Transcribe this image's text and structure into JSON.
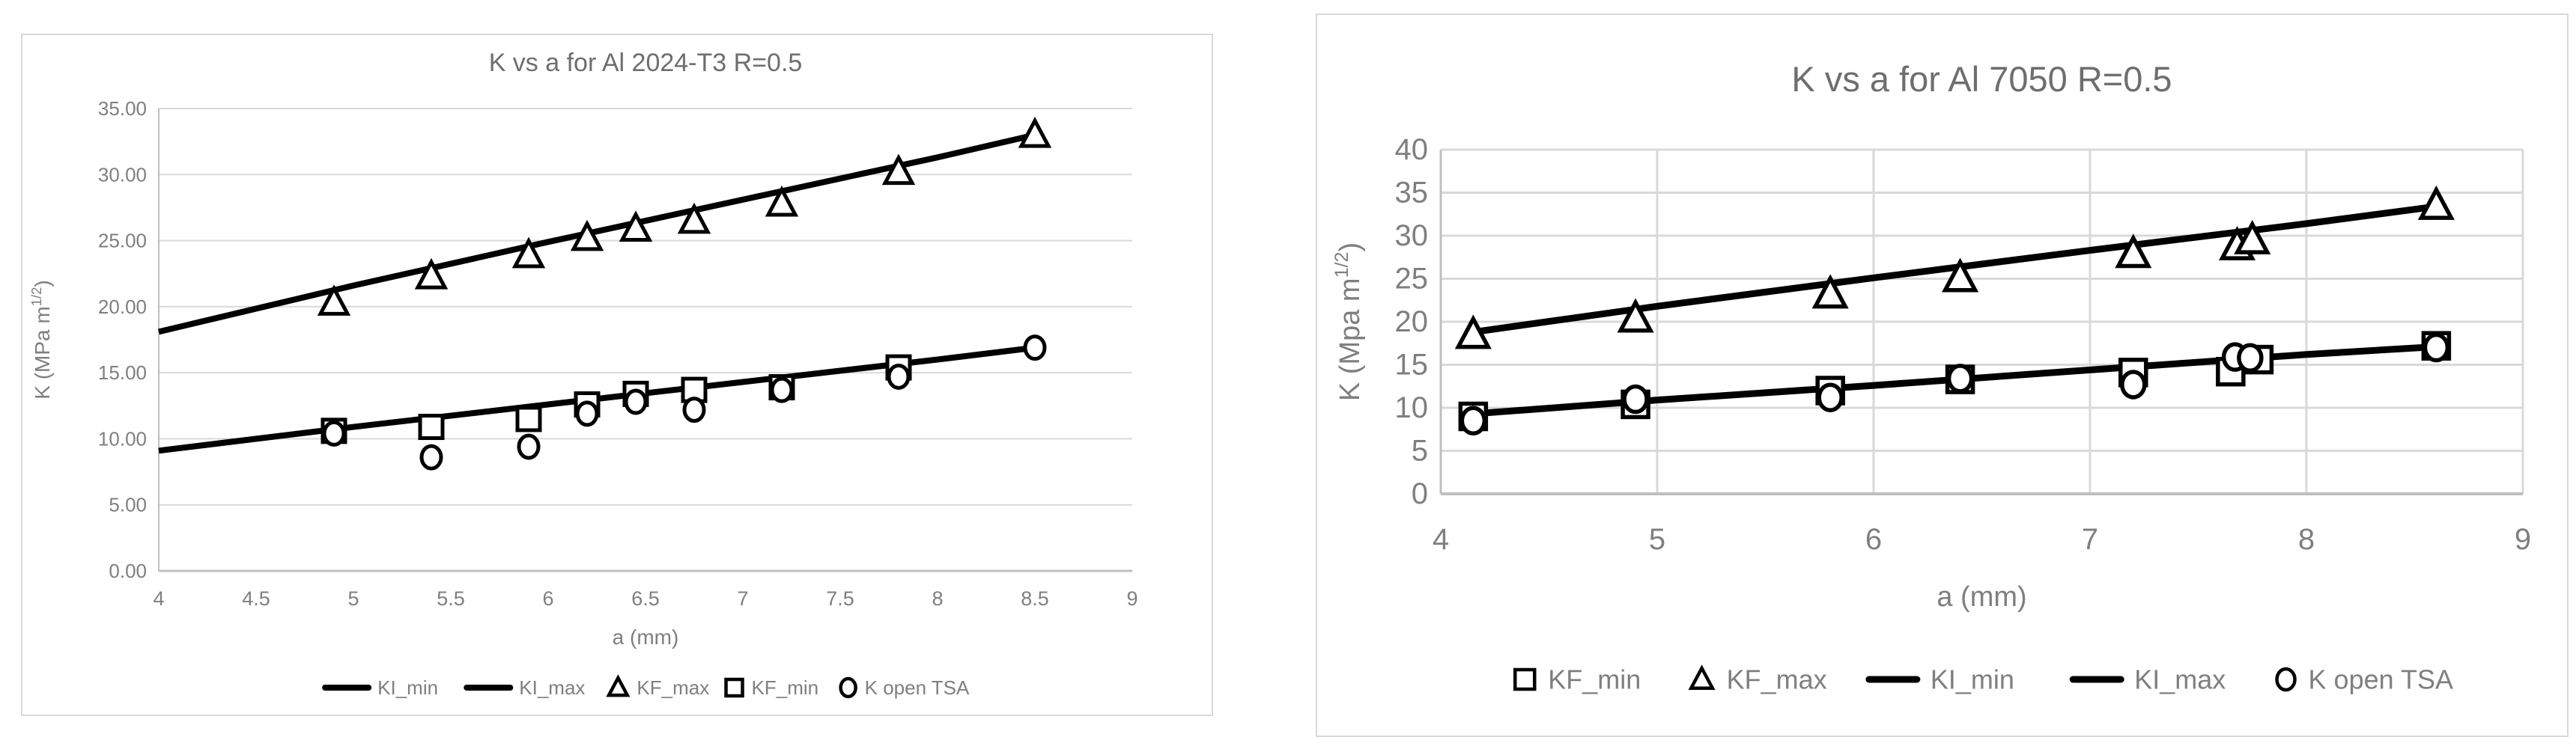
{
  "colors": {
    "background": "#ffffff",
    "card_border": "#d9d9d9",
    "gridline": "#d9d9d9",
    "axis_line": "#bfbfbf",
    "text": "#7f7f7f",
    "title": "#6e6e6e",
    "series": "#000000",
    "marker_fill": "#ffffff"
  },
  "chart_data": [
    {
      "type": "scatter",
      "title": "K vs a for Al 2024-T3 R=0.5",
      "xlabel": "a (mm)",
      "ylabel": "K (MPa m1/2)",
      "ylabel_parts": {
        "pre": "K (MPa m",
        "sup": "1/2",
        "post": ")"
      },
      "xlim": [
        4,
        9
      ],
      "ylim": [
        0,
        35
      ],
      "xtick_values": [
        4,
        4.5,
        5,
        5.5,
        6,
        6.5,
        7,
        7.5,
        8,
        8.5,
        9
      ],
      "xtick_labels": [
        "4",
        "4.5",
        "5",
        "5.5",
        "6",
        "6.5",
        "7",
        "7.5",
        "8",
        "8.5",
        "9"
      ],
      "ytick_values": [
        0,
        5,
        10,
        15,
        20,
        25,
        30,
        35
      ],
      "ytick_labels": [
        "0.00",
        "5.00",
        "10.00",
        "15.00",
        "20.00",
        "25.00",
        "30.00",
        "35.00"
      ],
      "grid": {
        "horizontal": true,
        "vertical": false
      },
      "legend_position": "bottom",
      "legend": [
        "KI_min",
        "KI_max",
        "KF_max",
        "KF_min",
        "K open TSA"
      ],
      "series": [
        {
          "name": "KI_min",
          "kind": "line",
          "points": [
            [
              4,
              9.1
            ],
            [
              5,
              10.9
            ],
            [
              6,
              12.6
            ],
            [
              7,
              14.3
            ],
            [
              8,
              16.0
            ],
            [
              8.5,
              16.9
            ]
          ]
        },
        {
          "name": "KI_max",
          "kind": "line",
          "points": [
            [
              4,
              18.1
            ],
            [
              5,
              21.6
            ],
            [
              6,
              24.9
            ],
            [
              7,
              28.1
            ],
            [
              8,
              31.3
            ],
            [
              8.5,
              33.0
            ]
          ]
        },
        {
          "name": "KF_max",
          "kind": "scatter",
          "marker": "triangle",
          "points": [
            [
              4.9,
              20.3
            ],
            [
              5.4,
              22.3
            ],
            [
              5.9,
              23.9
            ],
            [
              6.2,
              25.2
            ],
            [
              6.45,
              25.9
            ],
            [
              6.75,
              26.5
            ],
            [
              7.2,
              27.8
            ],
            [
              7.8,
              30.2
            ],
            [
              8.5,
              33.0
            ]
          ]
        },
        {
          "name": "KF_min",
          "kind": "scatter",
          "marker": "square",
          "points": [
            [
              4.9,
              10.6
            ],
            [
              5.4,
              10.9
            ],
            [
              5.9,
              11.5
            ],
            [
              6.2,
              12.6
            ],
            [
              6.45,
              13.4
            ],
            [
              6.75,
              13.7
            ],
            [
              7.2,
              13.9
            ],
            [
              7.8,
              15.4
            ]
          ]
        },
        {
          "name": "K open TSA",
          "kind": "scatter",
          "marker": "circle",
          "points": [
            [
              4.9,
              10.4
            ],
            [
              5.4,
              8.6
            ],
            [
              5.9,
              9.4
            ],
            [
              6.2,
              11.9
            ],
            [
              6.45,
              12.8
            ],
            [
              6.75,
              12.2
            ],
            [
              7.2,
              13.7
            ],
            [
              7.8,
              14.7
            ],
            [
              8.5,
              16.9
            ]
          ]
        }
      ]
    },
    {
      "type": "scatter",
      "title": "K vs a for Al 7050 R=0.5",
      "xlabel": "a (mm)",
      "ylabel": "K (Mpa m1/2)",
      "ylabel_parts": {
        "pre": "K (Mpa m",
        "sup": "1/2",
        "post": ")"
      },
      "xlim": [
        4,
        9
      ],
      "ylim": [
        0,
        40
      ],
      "xtick_values": [
        4,
        5,
        6,
        7,
        8,
        9
      ],
      "xtick_labels": [
        "4",
        "5",
        "6",
        "7",
        "8",
        "9"
      ],
      "ytick_values": [
        0,
        5,
        10,
        15,
        20,
        25,
        30,
        35,
        40
      ],
      "ytick_labels": [
        "0",
        "5",
        "10",
        "15",
        "20",
        "25",
        "30",
        "35",
        "40"
      ],
      "grid": {
        "horizontal": true,
        "vertical": true
      },
      "legend_position": "bottom",
      "legend": [
        "KF_min",
        "KF_max",
        "KI_min",
        "KI_max",
        "K open TSA"
      ],
      "series": [
        {
          "name": "KF_min",
          "kind": "scatter",
          "marker": "square",
          "points": [
            [
              4.15,
              9.0
            ],
            [
              4.9,
              10.4
            ],
            [
              5.8,
              12.0
            ],
            [
              6.4,
              13.3
            ],
            [
              7.2,
              14.1
            ],
            [
              7.65,
              14.2
            ],
            [
              7.78,
              15.6
            ],
            [
              8.6,
              17.2
            ]
          ]
        },
        {
          "name": "KF_max",
          "kind": "scatter",
          "marker": "triangle",
          "points": [
            [
              4.15,
              18.5
            ],
            [
              4.9,
              20.4
            ],
            [
              5.8,
              23.2
            ],
            [
              6.4,
              25.1
            ],
            [
              7.2,
              27.9
            ],
            [
              7.68,
              28.8
            ],
            [
              7.75,
              29.5
            ],
            [
              8.6,
              33.5
            ]
          ]
        },
        {
          "name": "KI_min",
          "kind": "line",
          "points": [
            [
              4.15,
              9.3
            ],
            [
              5,
              10.9
            ],
            [
              6,
              12.6
            ],
            [
              7,
              14.4
            ],
            [
              8,
              16.2
            ],
            [
              8.6,
              17.1
            ]
          ]
        },
        {
          "name": "KI_max",
          "kind": "line",
          "points": [
            [
              4.15,
              18.8
            ],
            [
              5,
              21.8
            ],
            [
              6,
              25.1
            ],
            [
              7,
              28.3
            ],
            [
              8,
              31.4
            ],
            [
              8.6,
              33.4
            ]
          ]
        },
        {
          "name": "K open TSA",
          "kind": "scatter",
          "marker": "circle",
          "points": [
            [
              4.15,
              8.5
            ],
            [
              4.9,
              11.0
            ],
            [
              5.8,
              11.2
            ],
            [
              6.4,
              13.4
            ],
            [
              7.2,
              12.7
            ],
            [
              7.67,
              15.9
            ],
            [
              7.74,
              15.8
            ],
            [
              8.6,
              17.0
            ]
          ]
        }
      ]
    }
  ]
}
